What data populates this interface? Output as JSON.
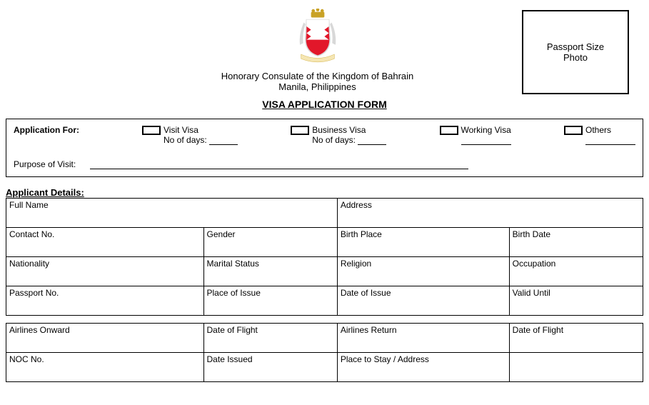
{
  "header": {
    "org_line1": "Honorary Consulate of the Kingdom of Bahrain",
    "org_line2": "Manila, Philippines",
    "photo_label": "Passport Size\nPhoto",
    "emblem": {
      "shield_fill": "#e2172a",
      "shield_stroke": "#d9d9d9",
      "white_fill": "#ffffff",
      "crown_fill": "#c9a227",
      "scroll_fill": "#f5e6b3",
      "tail_fill": "#d8d8d8"
    }
  },
  "title": "VISA APPLICATION FORM",
  "application_for": {
    "label": "Application For:",
    "options": [
      {
        "label": "Visit Visa",
        "sub": "No of days:"
      },
      {
        "label": "Business Visa",
        "sub": "No of days:"
      },
      {
        "label": "Working Visa",
        "sub": ""
      },
      {
        "label": "Others",
        "sub": ""
      }
    ],
    "purpose_label": "Purpose of Visit:"
  },
  "applicant_details": {
    "heading": "Applicant Details:",
    "rows": [
      [
        {
          "label": "Full Name",
          "colspan": 2
        },
        {
          "label": "Address",
          "colspan": 2
        }
      ],
      [
        {
          "label": "Contact No."
        },
        {
          "label": "Gender"
        },
        {
          "label": "Birth Place"
        },
        {
          "label": "Birth Date"
        }
      ],
      [
        {
          "label": "Nationality"
        },
        {
          "label": "Marital Status"
        },
        {
          "label": "Religion"
        },
        {
          "label": "Occupation"
        }
      ],
      [
        {
          "label": "Passport No."
        },
        {
          "label": "Place of Issue"
        },
        {
          "label": "Date of Issue"
        },
        {
          "label": "Valid Until"
        }
      ]
    ]
  },
  "travel_details": {
    "rows": [
      [
        {
          "label": "Airlines Onward"
        },
        {
          "label": "Date of Flight"
        },
        {
          "label": "Airlines Return"
        },
        {
          "label": "Date of Flight"
        }
      ],
      [
        {
          "label": "NOC No."
        },
        {
          "label": "Date Issued"
        },
        {
          "label": "Place to Stay / Address"
        },
        {
          "label": ""
        }
      ]
    ]
  },
  "layout": {
    "col_widths_pct": [
      31,
      21,
      27,
      21
    ]
  }
}
